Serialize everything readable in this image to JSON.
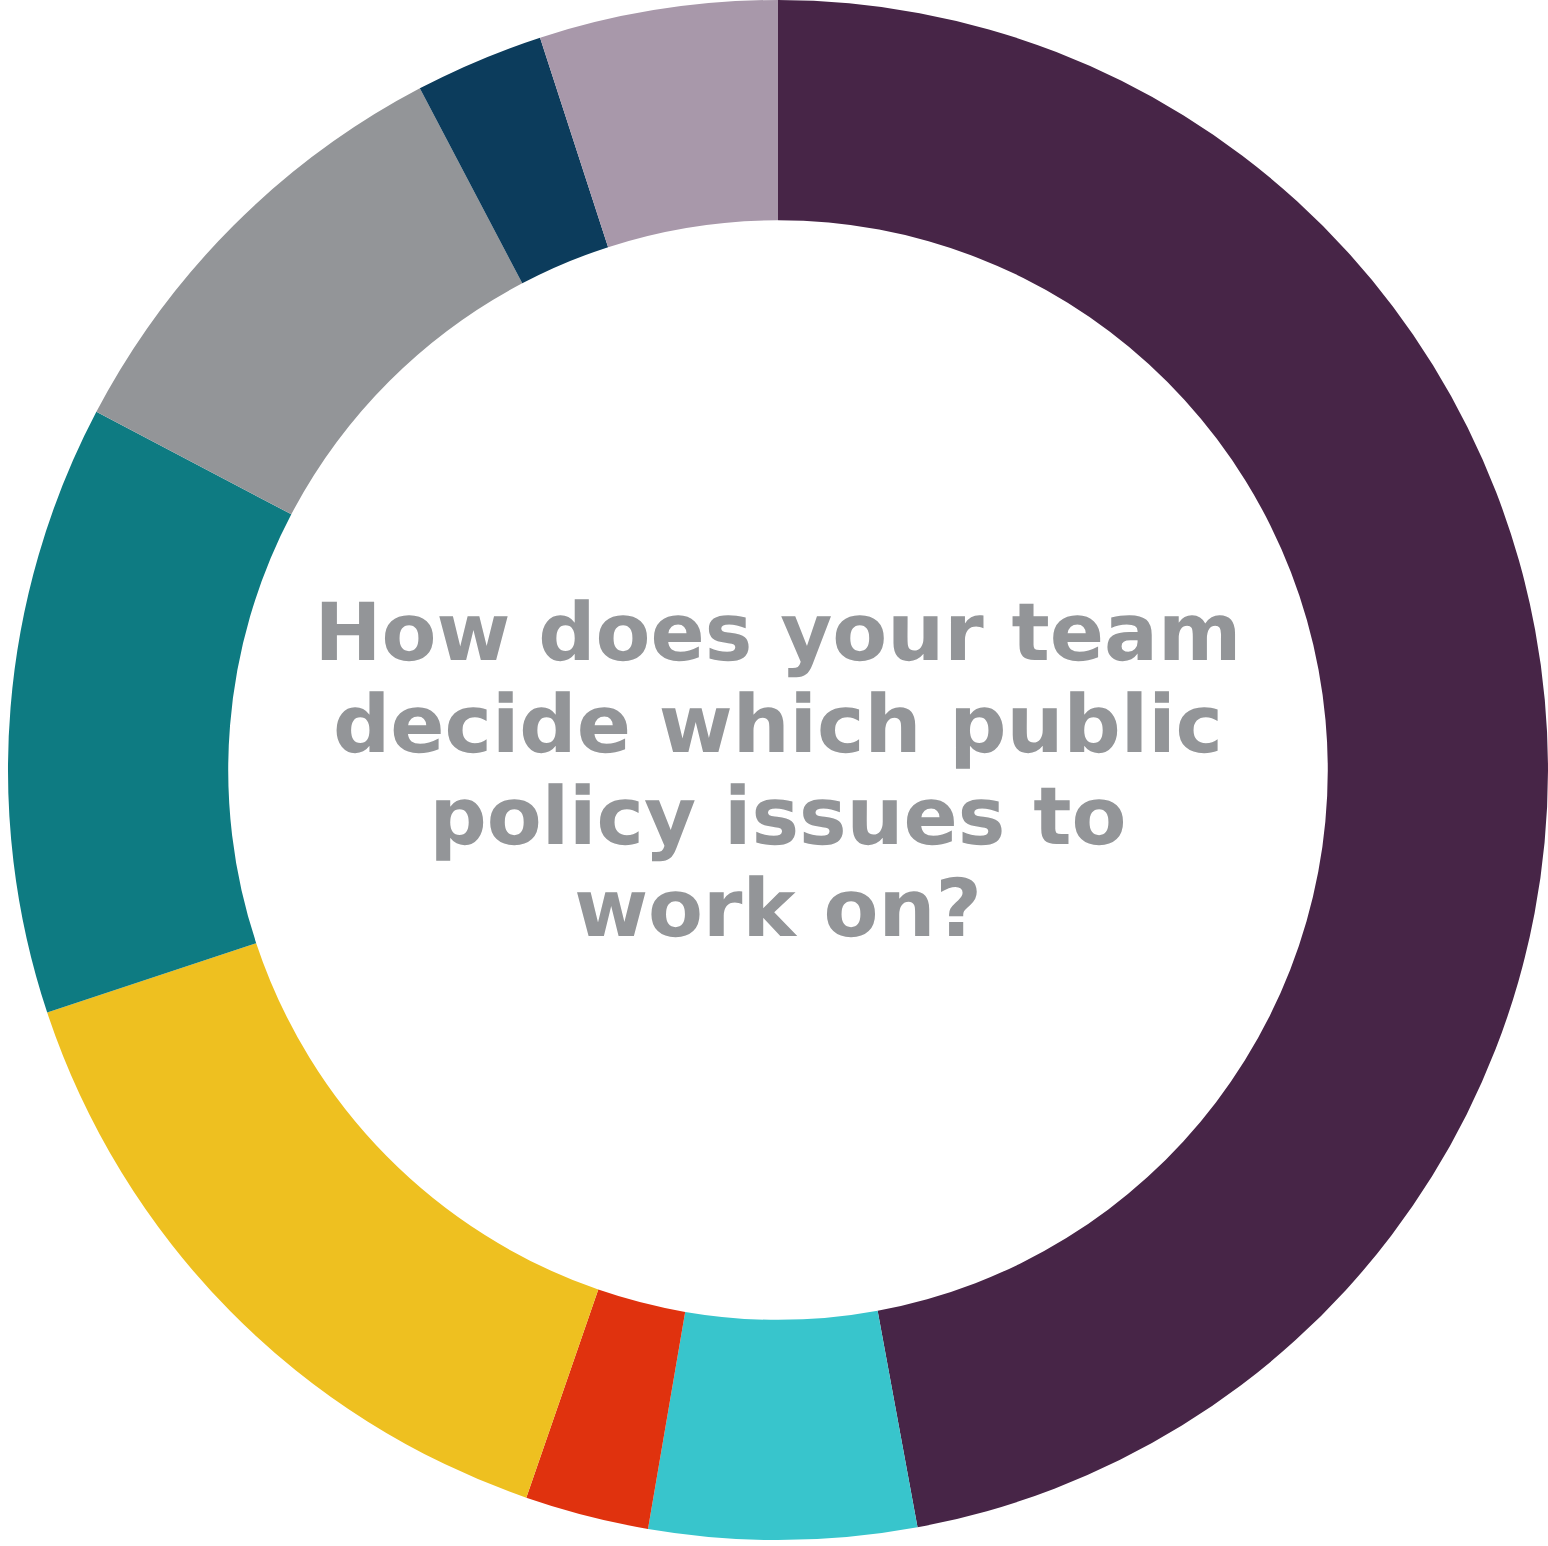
{
  "chart_data": {
    "type": "donut",
    "title": "How does your team decide which public policy issues to work on?",
    "categories": [
      null,
      null,
      null,
      null,
      null,
      null,
      null,
      null
    ],
    "values": [
      47.1,
      5.6,
      2.6,
      14.6,
      12.8,
      9.6,
      2.7,
      5.0
    ],
    "colors": [
      "#472547",
      "#38c5cc",
      "#e0320e",
      "#eec020",
      "#0e7b82",
      "#939598",
      "#0c3c5c",
      "#a898aa"
    ]
  }
}
